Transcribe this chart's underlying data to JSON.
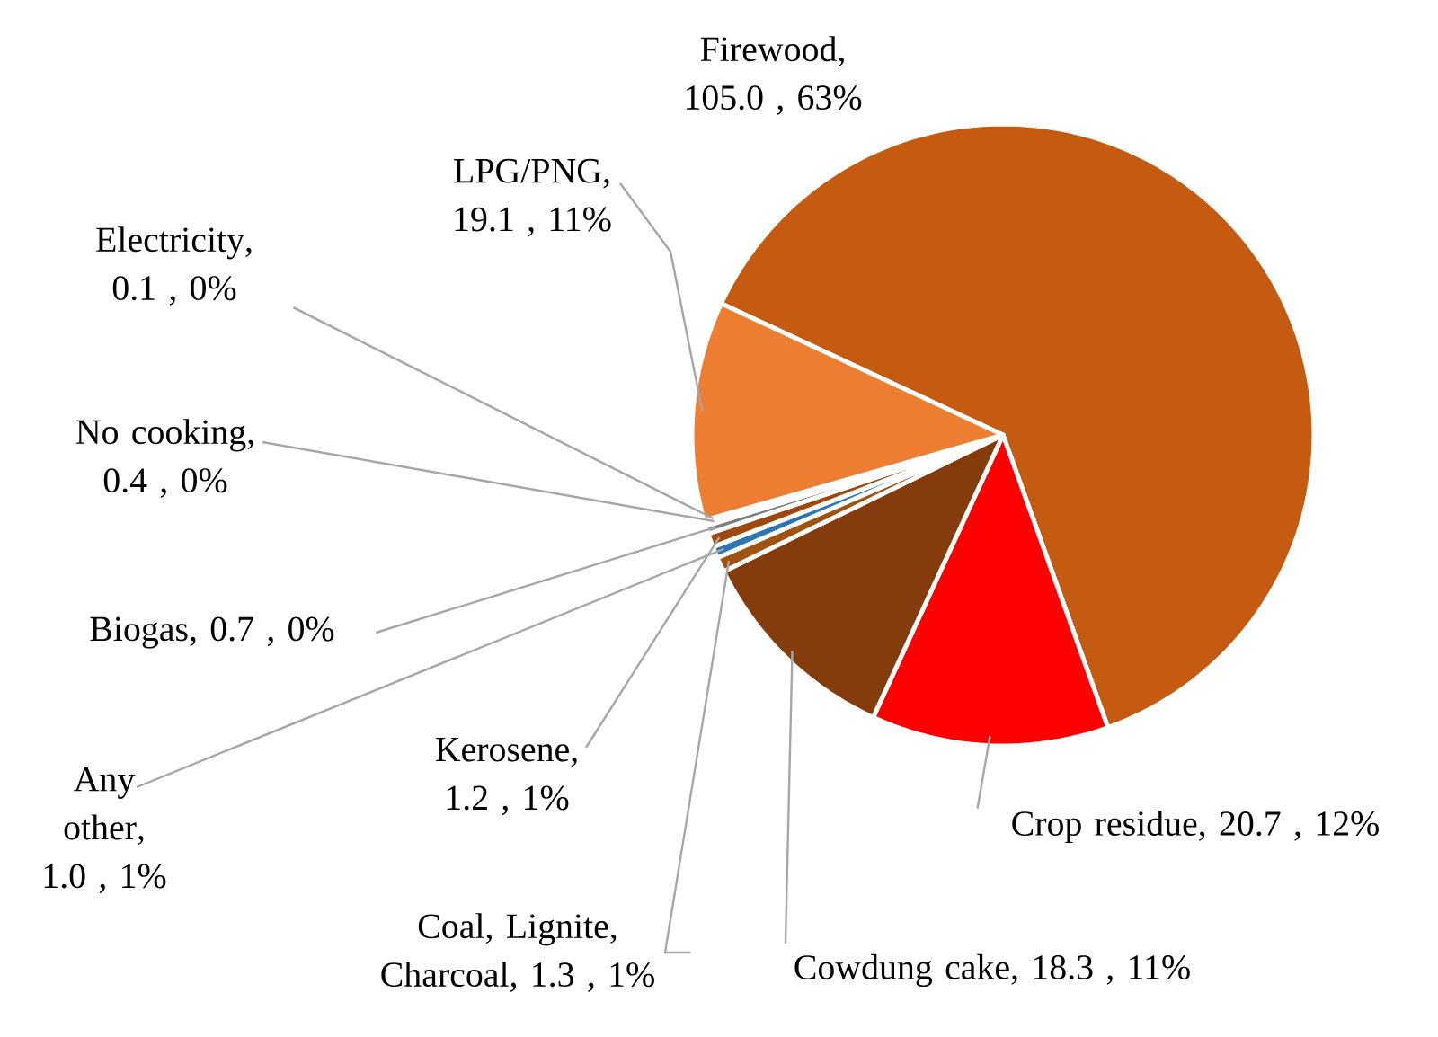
{
  "chart_data": {
    "type": "pie",
    "categories": [
      "Firewood",
      "Crop residue",
      "Cowdung cake",
      "Coal, Lignite, Charcoal",
      "Any other",
      "Kerosene",
      "Biogas",
      "No cooking",
      "Electricity",
      "LPG/PNG"
    ],
    "values": [
      105.0,
      20.7,
      18.3,
      1.3,
      1.0,
      1.2,
      0.7,
      0.4,
      0.1,
      19.1
    ],
    "colors": [
      "#c55a11",
      "#ff0000",
      "#843c0c",
      "#a0520f",
      "#2e75b6",
      "#9e480e",
      "#7f7f7f",
      "#bf9000",
      "#ffc000",
      "#ed7d31"
    ],
    "value_labels": [
      ", 105.0 , 63%",
      ",  20.7 , 12%",
      ",  18.3 , 11%",
      ",  1.3 , 1%",
      ", 1.0 , 1%",
      ", 1.2 , 1%",
      ",  0.7 , 0%",
      ", 0.4 , 0%",
      ", 0.1 , 0%",
      ", 19.1 , 11%"
    ]
  }
}
